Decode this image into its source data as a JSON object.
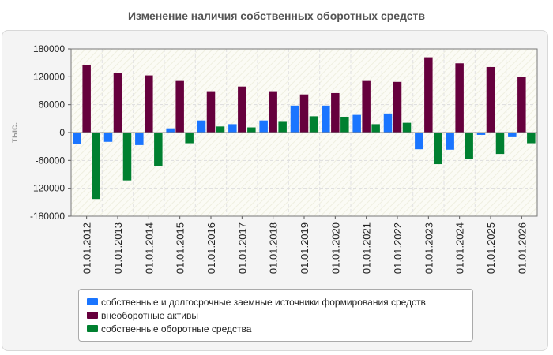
{
  "title": "Изменение наличия собственных оборотных средств",
  "chart_data": {
    "type": "bar",
    "title": "Изменение наличия собственных оборотных средств",
    "ylabel": "тыс.",
    "xlabel": "",
    "ylim": [
      -180000,
      180000
    ],
    "yticks": [
      180000,
      120000,
      60000,
      0,
      -60000,
      -120000,
      -180000
    ],
    "grid": true,
    "legend_position": "bottom",
    "categories": [
      "01.01.2012",
      "01.01.2013",
      "01.01.2014",
      "01.01.2015",
      "01.01.2016",
      "01.01.2017",
      "01.01.2018",
      "01.01.2019",
      "01.01.2020",
      "01.01.2021",
      "01.01.2022",
      "01.01.2023",
      "01.01.2024",
      "01.01.2025",
      "01.01.2026"
    ],
    "series": [
      {
        "name": "собственные и долгосрочные заемные источники формирования средств",
        "color": "#1a75ff",
        "values": [
          -24000,
          -20000,
          -27000,
          9000,
          26000,
          18000,
          26000,
          58000,
          58000,
          38000,
          41000,
          -36000,
          -37000,
          -5000,
          -10000
        ]
      },
      {
        "name": "внеоборотные активы",
        "color": "#66003d",
        "values": [
          146000,
          129000,
          123000,
          111000,
          89000,
          99000,
          89000,
          82000,
          85000,
          111000,
          109000,
          162000,
          149000,
          141000,
          120000
        ]
      },
      {
        "name": "собственные оборотные средства",
        "color": "#008030",
        "values": [
          -143000,
          -103000,
          -72000,
          -23000,
          13000,
          11000,
          23000,
          35000,
          34000,
          18000,
          21000,
          -68000,
          -57000,
          -46000,
          -23000
        ]
      }
    ]
  }
}
